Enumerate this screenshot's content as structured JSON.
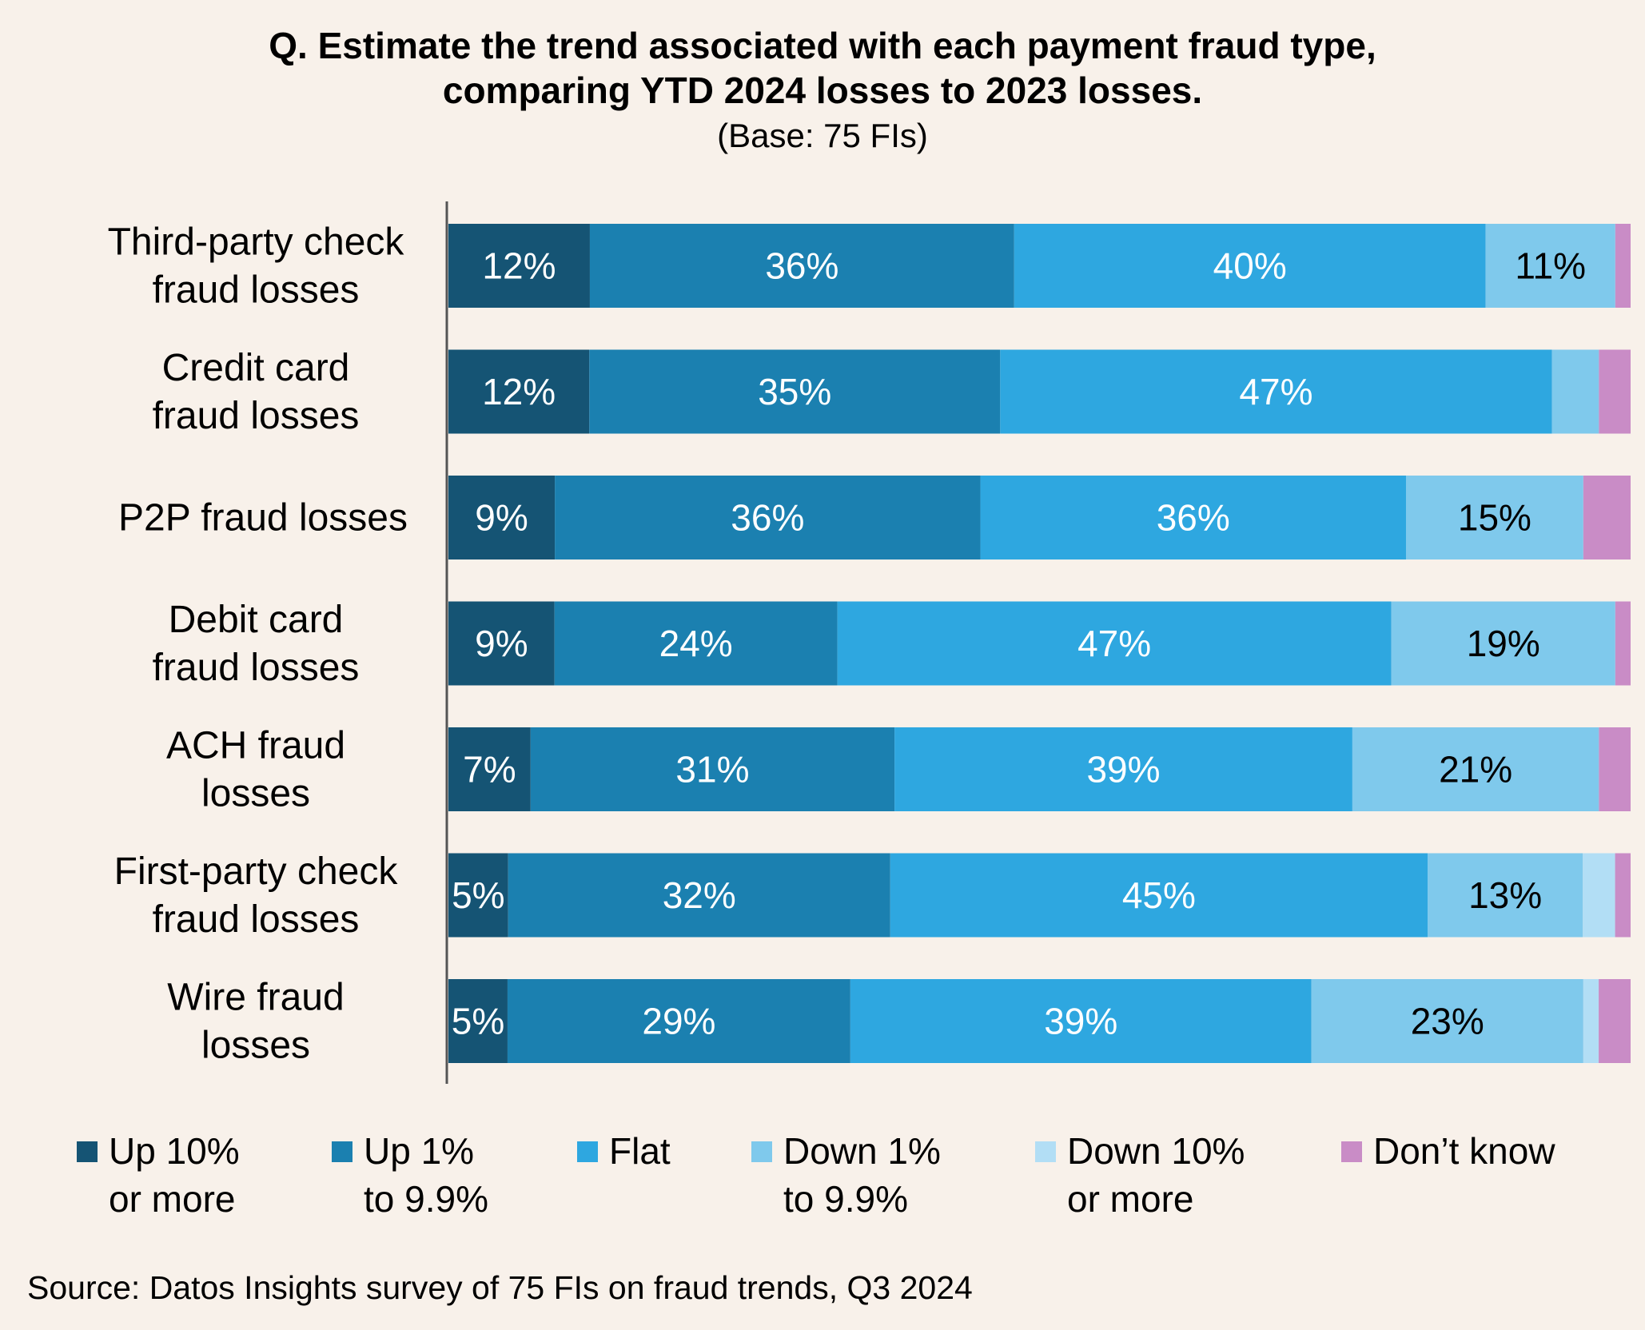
{
  "title_line1": "Q. Estimate the trend associated with each payment fraud type,",
  "title_line2": "comparing YTD 2024 losses to 2023 losses.",
  "subtitle": "(Base: 75 FIs)",
  "source": "Source: Datos Insights survey of 75 FIs on fraud trends, Q3 2024",
  "legend": [
    {
      "text": "Up 10%\nor more",
      "color": "#155474"
    },
    {
      "text": "Up 1%\nto 9.9%",
      "color": "#1b80b0"
    },
    {
      "text": "Flat",
      "color": "#2ea7e0"
    },
    {
      "text": "Down 1%\nto 9.9%",
      "color": "#7fc9ec"
    },
    {
      "text": "Down 10%\nor more",
      "color": "#b2def5"
    },
    {
      "text": "Don’t know",
      "color": "#c98cc6"
    }
  ],
  "chart_data": {
    "type": "bar",
    "orientation": "horizontal",
    "stacked": true,
    "percent": true,
    "categories": [
      "Third-party check\nfraud losses",
      "Credit card\nfraud losses",
      "P2P fraud losses",
      "Debit card\nfraud losses",
      "ACH fraud\nlosses",
      "First-party check\nfraud losses",
      "Wire fraud\nlosses"
    ],
    "series": [
      {
        "name": "Up 10% or more",
        "color": "#155474",
        "label_color": "#ffffff",
        "values": [
          12,
          12,
          9,
          9,
          7,
          5,
          5
        ],
        "labels": [
          "12%",
          "12%",
          "9%",
          "9%",
          "7%",
          "5%",
          "5%"
        ]
      },
      {
        "name": "Up 1% to 9.9%",
        "color": "#1b80b0",
        "label_color": "#ffffff",
        "values": [
          36,
          35,
          36,
          24,
          31,
          32,
          29
        ],
        "labels": [
          "36%",
          "35%",
          "36%",
          "24%",
          "31%",
          "32%",
          "29%"
        ]
      },
      {
        "name": "Flat",
        "color": "#2ea7e0",
        "label_color": "#ffffff",
        "values": [
          40,
          47,
          36,
          47,
          39,
          45,
          39
        ],
        "labels": [
          "40%",
          "47%",
          "36%",
          "47%",
          "39%",
          "45%",
          "39%"
        ]
      },
      {
        "name": "Down 1% to 9.9%",
        "color": "#7fc9ec",
        "label_color": "#000000",
        "values": [
          11,
          4,
          15,
          19,
          21,
          13,
          23
        ],
        "labels": [
          "11%",
          "",
          "15%",
          "19%",
          "21%",
          "13%",
          "23%"
        ]
      },
      {
        "name": "Down 10% or more",
        "color": "#b2def5",
        "label_color": "#000000",
        "values": [
          0,
          0,
          0,
          0,
          0,
          2.7,
          1.3
        ],
        "labels": [
          "",
          "",
          "",
          "",
          "",
          "",
          ""
        ]
      },
      {
        "name": "Don’t know",
        "color": "#c98cc6",
        "label_color": "#000000",
        "values": [
          1.3,
          2.7,
          4,
          1.3,
          2.7,
          1.3,
          2.7
        ],
        "labels": [
          "",
          "",
          "",
          "",
          "",
          "",
          ""
        ]
      }
    ],
    "xlim": [
      0,
      100
    ],
    "grid": false,
    "legend_position": "bottom"
  }
}
